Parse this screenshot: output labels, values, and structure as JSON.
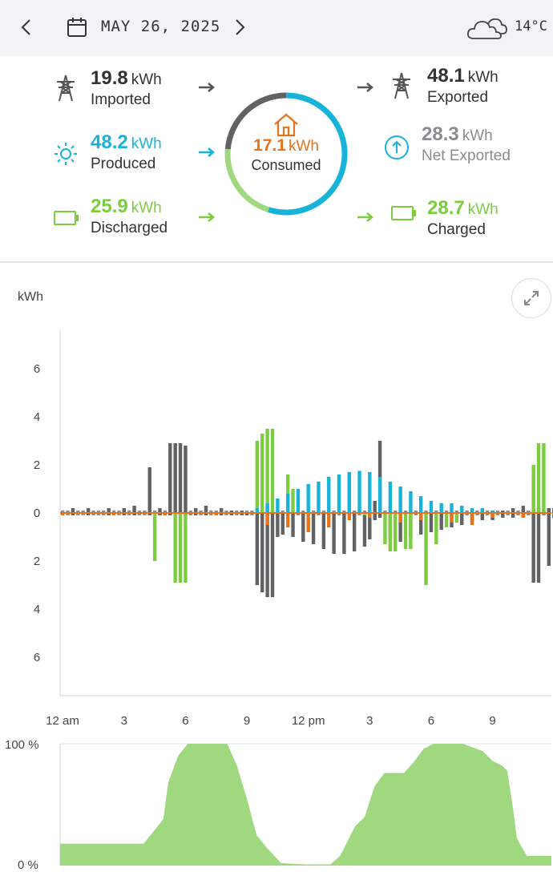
{
  "header": {
    "date": "MAY 26, 2025",
    "temperature": "14°C",
    "prev_icon": "chevron-left-icon",
    "next_icon": "chevron-right-icon",
    "calendar_icon": "calendar-icon",
    "weather_icon": "cloud-icon"
  },
  "summary": {
    "imported": {
      "value": "19.8",
      "unit": "kWh",
      "label": "Imported",
      "icon": "power-tower-icon"
    },
    "produced": {
      "value": "48.2",
      "unit": "kWh",
      "label": "Produced",
      "icon": "sun-icon"
    },
    "discharged": {
      "value": "25.9",
      "unit": "kWh",
      "label": "Discharged",
      "icon": "battery-icon"
    },
    "consumed": {
      "value": "17.1",
      "unit": "kWh",
      "label": "Consumed",
      "icon": "home-icon"
    },
    "exported": {
      "value": "48.1",
      "unit": "kWh",
      "label": "Exported",
      "icon": "power-tower-icon"
    },
    "net_exported": {
      "value": "28.3",
      "unit": "kWh",
      "label": "Net Exported",
      "icon": "arrow-up-circle-icon"
    },
    "charged": {
      "value": "28.7",
      "unit": "kWh",
      "label": "Charged",
      "icon": "battery-icon"
    }
  },
  "colors": {
    "grid": "#606264",
    "solar": "#17b3d8",
    "battery": "#7ccc3f",
    "consumption": "#e8731a",
    "soc_fill": "#9fd87f"
  },
  "chart_data": [
    {
      "type": "bar",
      "ylabel": "kWh",
      "ylim": [
        -7.5,
        7.5
      ],
      "y_tick_labels": [
        "6",
        "4",
        "2",
        "0",
        "2",
        "4",
        "6"
      ],
      "x_tick_labels": [
        "12 am",
        "3",
        "6",
        "9",
        "12 pm",
        "3",
        "6",
        "9"
      ],
      "interval_minutes": 15,
      "bars_per_day": 96,
      "series": [
        {
          "name": "grid",
          "color": "#606264",
          "values": [
            [
              2,
              0.2,
              -0.1
            ],
            [
              5,
              0.2,
              -0.1
            ],
            [
              9,
              0.2,
              -0.1
            ],
            [
              12,
              0.2,
              -0.1
            ],
            [
              14,
              0.3,
              -0.1
            ],
            [
              17,
              1.9,
              -0.1
            ],
            [
              19,
              0.2,
              -0.1
            ],
            [
              21,
              2.9,
              -0.1
            ],
            [
              22,
              2.9,
              -0.1
            ],
            [
              23,
              2.9,
              -0.1
            ],
            [
              24,
              2.8,
              -0.1
            ],
            [
              26,
              0.2,
              -0.1
            ],
            [
              28,
              0.3,
              -0.1
            ],
            [
              31,
              0.2,
              -0.1
            ],
            [
              33,
              0.1,
              -0.1
            ],
            [
              35,
              0.1,
              -0.1
            ],
            [
              36,
              0,
              -0.1
            ],
            [
              38,
              0,
              -3.0
            ],
            [
              39,
              0,
              -3.3
            ],
            [
              40,
              0,
              -3.5
            ],
            [
              41,
              0,
              -3.5
            ],
            [
              42,
              0,
              -1.0
            ],
            [
              43,
              0,
              -0.9
            ],
            [
              45,
              0,
              -1.0
            ],
            [
              47,
              0,
              -1.2
            ],
            [
              49,
              0,
              -1.3
            ],
            [
              51,
              0,
              -1.5
            ],
            [
              53,
              0,
              -1.7
            ],
            [
              55,
              0,
              -1.7
            ],
            [
              57,
              0,
              -1.6
            ],
            [
              59,
              0,
              -1.4
            ],
            [
              60,
              0.0,
              -1.1
            ],
            [
              61,
              0.5,
              -0.3
            ],
            [
              62,
              3.0,
              -0.2
            ],
            [
              64,
              0,
              -1.0
            ],
            [
              66,
              0,
              -1.2
            ],
            [
              68,
              0,
              -1.0
            ],
            [
              70,
              0,
              -0.9
            ],
            [
              72,
              0,
              -0.8
            ],
            [
              74,
              0,
              -0.7
            ],
            [
              76,
              0,
              -0.6
            ],
            [
              78,
              0,
              -0.5
            ],
            [
              80,
              0,
              -0.4
            ],
            [
              82,
              0.1,
              -0.3
            ],
            [
              84,
              0.1,
              -0.3
            ],
            [
              86,
              0.1,
              -0.2
            ],
            [
              88,
              0.2,
              -0.2
            ],
            [
              90,
              0.3,
              -0.2
            ],
            [
              92,
              0.2,
              -2.9
            ],
            [
              93,
              0.2,
              -2.9
            ],
            [
              95,
              0.2,
              -2.2
            ],
            [
              96,
              0.2,
              -0.2
            ],
            [
              97,
              0.2,
              -0.2
            ],
            [
              98,
              0.2,
              -0.2
            ]
          ]
        },
        {
          "name": "battery",
          "color": "#7ccc3f",
          "values": [
            [
              18,
              0,
              -2.0
            ],
            [
              22,
              0,
              -2.9
            ],
            [
              23,
              0,
              -2.9
            ],
            [
              24,
              0,
              -2.9
            ],
            [
              38,
              3.0,
              0
            ],
            [
              39,
              3.3,
              0
            ],
            [
              40,
              3.5,
              0
            ],
            [
              41,
              3.5,
              0
            ],
            [
              44,
              1.6,
              0
            ],
            [
              45,
              1.0,
              0
            ],
            [
              59,
              0,
              -0.1
            ],
            [
              63,
              0,
              -1.3
            ],
            [
              64,
              0,
              -1.6
            ],
            [
              65,
              0,
              -1.6
            ],
            [
              67,
              0,
              -1.5
            ],
            [
              68,
              0,
              -1.5
            ],
            [
              71,
              0,
              -3.0
            ],
            [
              73,
              0,
              -1.3
            ],
            [
              75,
              0,
              -0.6
            ],
            [
              77,
              0,
              -0.4
            ],
            [
              92,
              2.0,
              0
            ],
            [
              93,
              2.9,
              0
            ],
            [
              94,
              2.9,
              0
            ],
            [
              97,
              1.6,
              0
            ]
          ]
        },
        {
          "name": "solar",
          "color": "#17b3d8",
          "values": [
            [
              38,
              0.2,
              0
            ],
            [
              40,
              0.4,
              0
            ],
            [
              42,
              0.6,
              0
            ],
            [
              44,
              0.8,
              0
            ],
            [
              46,
              1.0,
              0
            ],
            [
              48,
              1.2,
              0
            ],
            [
              50,
              1.3,
              0
            ],
            [
              52,
              1.5,
              0
            ],
            [
              54,
              1.6,
              0
            ],
            [
              56,
              1.7,
              0
            ],
            [
              58,
              1.75,
              0
            ],
            [
              60,
              1.7,
              0
            ],
            [
              62,
              1.5,
              0
            ],
            [
              64,
              1.3,
              0
            ],
            [
              66,
              1.1,
              0
            ],
            [
              68,
              0.9,
              0
            ],
            [
              70,
              0.7,
              0
            ],
            [
              72,
              0.5,
              0
            ],
            [
              74,
              0.4,
              0
            ],
            [
              76,
              0.4,
              0
            ],
            [
              78,
              0.3,
              0
            ],
            [
              80,
              0.2,
              0
            ],
            [
              82,
              0.2,
              0
            ],
            [
              84,
              0.1,
              0
            ]
          ]
        },
        {
          "name": "consumption",
          "color": "#e8731a",
          "values": [
            [
              0,
              0,
              -0.1
            ],
            [
              10,
              0,
              -0.1
            ],
            [
              20,
              0,
              -0.1
            ],
            [
              30,
              0,
              -0.1
            ],
            [
              40,
              0,
              -0.5
            ],
            [
              44,
              0,
              -0.6
            ],
            [
              48,
              0,
              -0.8
            ],
            [
              52,
              0,
              -0.6
            ],
            [
              56,
              0,
              -0.3
            ],
            [
              60,
              0,
              -0.2
            ],
            [
              66,
              0,
              -0.4
            ],
            [
              70,
              0,
              -0.3
            ],
            [
              76,
              0,
              -0.4
            ],
            [
              80,
              0,
              -0.5
            ],
            [
              84,
              0,
              -0.2
            ],
            [
              90,
              0,
              -0.2
            ],
            [
              96,
              0,
              -0.1
            ]
          ]
        }
      ]
    },
    {
      "type": "area",
      "ylim": [
        0,
        100
      ],
      "y_tick_labels": [
        "100 %",
        "0 %"
      ],
      "points": [
        [
          0,
          18
        ],
        [
          17,
          18
        ],
        [
          19,
          28
        ],
        [
          21,
          38
        ],
        [
          22,
          68
        ],
        [
          24,
          90
        ],
        [
          26,
          100
        ],
        [
          32,
          100
        ],
        [
          34,
          100
        ],
        [
          36,
          82
        ],
        [
          38,
          55
        ],
        [
          40,
          25
        ],
        [
          42,
          15
        ],
        [
          45,
          2
        ],
        [
          50,
          1
        ],
        [
          55,
          1
        ],
        [
          57,
          8
        ],
        [
          60,
          32
        ],
        [
          62,
          40
        ],
        [
          64,
          65
        ],
        [
          66,
          76
        ],
        [
          70,
          76
        ],
        [
          72,
          85
        ],
        [
          74,
          96
        ],
        [
          76,
          100
        ],
        [
          82,
          100
        ],
        [
          86,
          94
        ],
        [
          88,
          86
        ],
        [
          90,
          82
        ],
        [
          91,
          78
        ],
        [
          92,
          52
        ],
        [
          93,
          22
        ],
        [
          95,
          8
        ],
        [
          97,
          8
        ],
        [
          100,
          8
        ]
      ]
    }
  ]
}
